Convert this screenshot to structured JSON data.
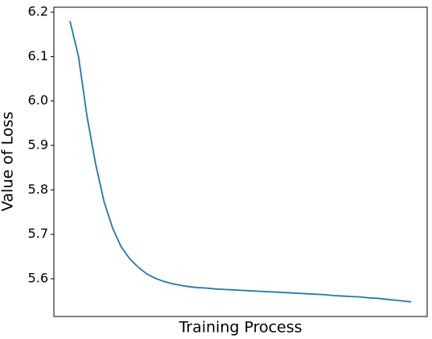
{
  "chart_data": {
    "type": "line",
    "xlabel": "Training Process",
    "ylabel": "Value of Loss",
    "series": [
      {
        "color": "#1f77b4",
        "values": [
          6.18,
          6.1,
          5.965,
          5.859,
          5.773,
          5.714,
          5.672,
          5.645,
          5.626,
          5.611,
          5.601,
          5.594,
          5.589,
          5.585,
          5.582,
          5.58,
          5.579,
          5.577,
          5.576,
          5.575,
          5.574,
          5.573,
          5.572,
          5.571,
          5.57,
          5.569,
          5.568,
          5.567,
          5.566,
          5.565,
          5.564,
          5.562,
          5.561,
          5.56,
          5.559,
          5.557,
          5.556,
          5.554,
          5.552,
          5.55,
          5.548
        ]
      }
    ],
    "ylim": [
      5.515,
      6.211
    ],
    "yticks": [
      5.6,
      5.7,
      5.8,
      5.9,
      {
        "value": 6,
        "label": "6.0"
      },
      6.1,
      6.2
    ]
  }
}
